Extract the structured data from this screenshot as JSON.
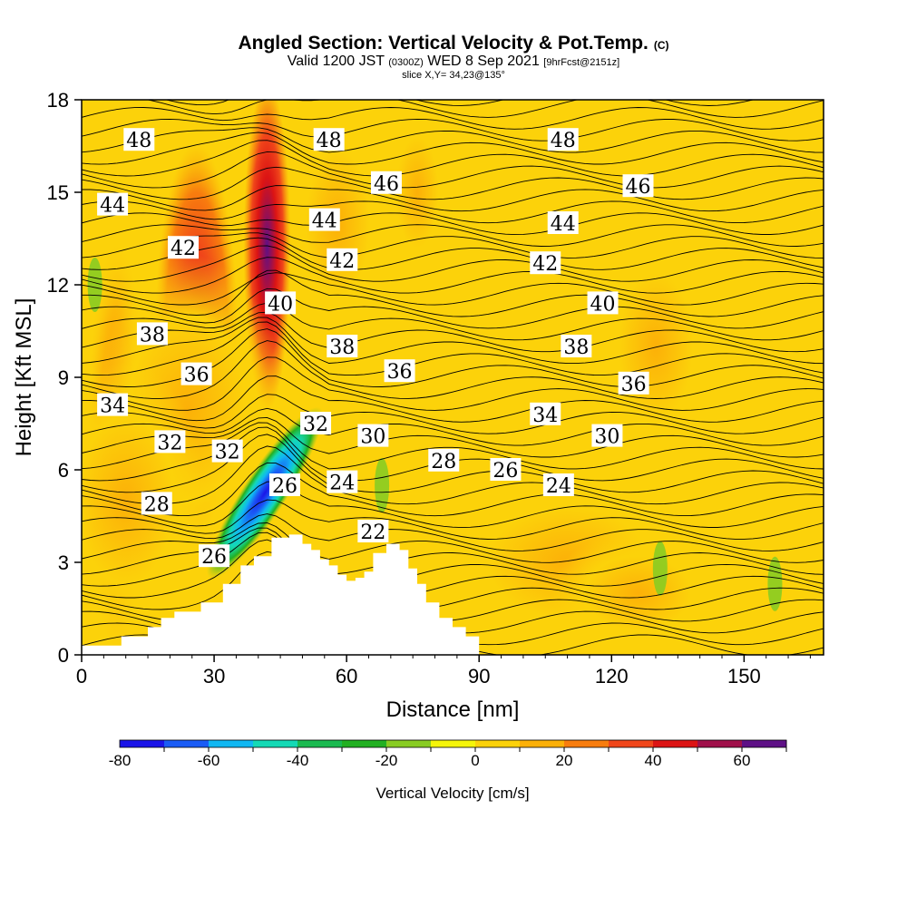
{
  "header": {
    "title": "Angled Section: Vertical Velocity & Pot.Temp.",
    "title_tag": "(C)",
    "valid_prefix": "Valid 1200 JST",
    "valid_zulu": "(0300Z)",
    "valid_date": "WED 8 Sep 2021",
    "forecast_tag": "[9hrFcst@2151z]",
    "slice": "slice X,Y= 34,23@135°"
  },
  "chart_data": {
    "type": "heatmap",
    "xlabel": "Distance [nm]",
    "ylabel": "Height [Kft MSL]",
    "xlim": [
      0,
      168
    ],
    "ylim": [
      0,
      18
    ],
    "x_ticks": [
      0,
      30,
      60,
      90,
      120,
      150
    ],
    "y_ticks": [
      0,
      3,
      6,
      9,
      12,
      15,
      18
    ],
    "colorbar": {
      "title": "Vertical Velocity [cm/s]",
      "ticks": [
        -80,
        -60,
        -40,
        -20,
        0,
        20,
        40,
        60
      ],
      "levels": [
        -80,
        -70,
        -60,
        -50,
        -40,
        -30,
        -20,
        -10,
        0,
        10,
        20,
        30,
        40,
        50,
        60,
        70
      ],
      "colors": [
        "#1a14e8",
        "#1a5cf5",
        "#10b7f2",
        "#14d9b5",
        "#1aba50",
        "#22b022",
        "#88cc22",
        "#f5f50a",
        "#fcd20a",
        "#fcb008",
        "#f87d0e",
        "#f0461a",
        "#dc1414",
        "#a0104a",
        "#5e1086"
      ]
    },
    "background_value_cm_s": 5,
    "updraft_cores": [
      {
        "x": 42,
        "zmin": 8.5,
        "zmax": 18,
        "peak_cm_s": 70
      },
      {
        "x": 26,
        "zmin": 4.5,
        "zmax": 16,
        "peak_cm_s": 45
      },
      {
        "x": 8,
        "zmin": 0.5,
        "zmax": 13,
        "peak_cm_s": 25
      }
    ],
    "downdraft_band": {
      "x_start": 33,
      "x_end": 50,
      "zmin": 2.5,
      "zmax": 8,
      "min_cm_s": -80
    },
    "terrain_kft": [
      {
        "x": 0,
        "z": 0.3
      },
      {
        "x": 9,
        "z": 0.6
      },
      {
        "x": 15,
        "z": 0.9
      },
      {
        "x": 18,
        "z": 1.2
      },
      {
        "x": 21,
        "z": 1.4
      },
      {
        "x": 27,
        "z": 1.7
      },
      {
        "x": 32,
        "z": 2.3
      },
      {
        "x": 36,
        "z": 2.9
      },
      {
        "x": 39,
        "z": 3.2
      },
      {
        "x": 43,
        "z": 3.8
      },
      {
        "x": 47,
        "z": 3.9
      },
      {
        "x": 50,
        "z": 3.6
      },
      {
        "x": 52,
        "z": 3.4
      },
      {
        "x": 54,
        "z": 3.1
      },
      {
        "x": 56,
        "z": 2.9
      },
      {
        "x": 58,
        "z": 2.6
      },
      {
        "x": 60,
        "z": 2.4
      },
      {
        "x": 62,
        "z": 2.5
      },
      {
        "x": 64,
        "z": 2.7
      },
      {
        "x": 66,
        "z": 3.3
      },
      {
        "x": 69,
        "z": 3.6
      },
      {
        "x": 72,
        "z": 3.4
      },
      {
        "x": 74,
        "z": 2.8
      },
      {
        "x": 76,
        "z": 2.3
      },
      {
        "x": 78,
        "z": 1.7
      },
      {
        "x": 81,
        "z": 1.2
      },
      {
        "x": 84,
        "z": 0.9
      },
      {
        "x": 87,
        "z": 0.6
      },
      {
        "x": 90,
        "z": 0.3
      }
    ],
    "theta_contour_interval_c": 1,
    "theta_contour_labels": [
      {
        "value": "48",
        "x": 13,
        "z": 16.7
      },
      {
        "value": "48",
        "x": 56,
        "z": 16.7
      },
      {
        "value": "48",
        "x": 109,
        "z": 16.7
      },
      {
        "value": "46",
        "x": 69,
        "z": 15.3
      },
      {
        "value": "46",
        "x": 126,
        "z": 15.2
      },
      {
        "value": "44",
        "x": 7,
        "z": 14.6
      },
      {
        "value": "44",
        "x": 55,
        "z": 14.1
      },
      {
        "value": "44",
        "x": 109,
        "z": 14.0
      },
      {
        "value": "42",
        "x": 23,
        "z": 13.2
      },
      {
        "value": "42",
        "x": 59,
        "z": 12.8
      },
      {
        "value": "42",
        "x": 105,
        "z": 12.7
      },
      {
        "value": "40",
        "x": 45,
        "z": 11.4
      },
      {
        "value": "40",
        "x": 118,
        "z": 11.4
      },
      {
        "value": "38",
        "x": 16,
        "z": 10.4
      },
      {
        "value": "38",
        "x": 59,
        "z": 10.0
      },
      {
        "value": "38",
        "x": 112,
        "z": 10.0
      },
      {
        "value": "36",
        "x": 26,
        "z": 9.1
      },
      {
        "value": "36",
        "x": 72,
        "z": 9.2
      },
      {
        "value": "36",
        "x": 125,
        "z": 8.8
      },
      {
        "value": "34",
        "x": 7,
        "z": 8.1
      },
      {
        "value": "34",
        "x": 105,
        "z": 7.8
      },
      {
        "value": "32",
        "x": 20,
        "z": 6.9
      },
      {
        "value": "32",
        "x": 33,
        "z": 6.6
      },
      {
        "value": "32",
        "x": 53,
        "z": 7.5
      },
      {
        "value": "30",
        "x": 66,
        "z": 7.1
      },
      {
        "value": "30",
        "x": 119,
        "z": 7.1
      },
      {
        "value": "28",
        "x": 17,
        "z": 4.9
      },
      {
        "value": "28",
        "x": 82,
        "z": 6.3
      },
      {
        "value": "26",
        "x": 30,
        "z": 3.2
      },
      {
        "value": "26",
        "x": 46,
        "z": 5.5
      },
      {
        "value": "26",
        "x": 96,
        "z": 6.0
      },
      {
        "value": "24",
        "x": 59,
        "z": 5.6
      },
      {
        "value": "24",
        "x": 108,
        "z": 5.5
      },
      {
        "value": "22",
        "x": 66,
        "z": 4.0
      }
    ]
  }
}
